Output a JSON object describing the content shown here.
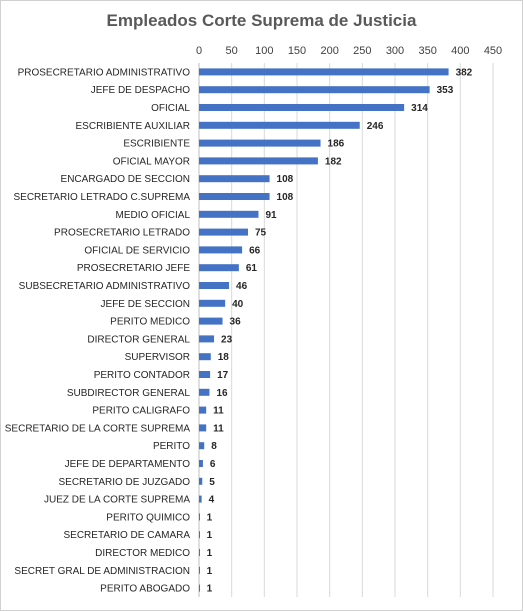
{
  "chart_data": {
    "type": "bar",
    "orientation": "horizontal",
    "title": "Empleados Corte Suprema de Justicia",
    "xlabel": "",
    "ylabel": "",
    "xlim": [
      0,
      450
    ],
    "x_ticks": [
      0,
      50,
      100,
      150,
      200,
      250,
      300,
      350,
      400,
      450
    ],
    "x_axis_position": "top",
    "grid": "vertical",
    "legend": "none",
    "bar_color": "#4472c4",
    "categories": [
      "PROSECRETARIO ADMINISTRATIVO",
      "JEFE DE DESPACHO",
      "OFICIAL",
      "ESCRIBIENTE AUXILIAR",
      "ESCRIBIENTE",
      "OFICIAL MAYOR",
      "ENCARGADO DE SECCION",
      "SECRETARIO LETRADO C.SUPREMA",
      "MEDIO OFICIAL",
      "PROSECRETARIO LETRADO",
      "OFICIAL DE SERVICIO",
      "PROSECRETARIO JEFE",
      "SUBSECRETARIO ADMINISTRATIVO",
      "JEFE DE SECCION",
      "PERITO MEDICO",
      "DIRECTOR GENERAL",
      "SUPERVISOR",
      "PERITO CONTADOR",
      "SUBDIRECTOR GENERAL",
      "PERITO CALIGRAFO",
      "SECRETARIO DE LA CORTE SUPREMA",
      "PERITO",
      "JEFE DE DEPARTAMENTO",
      "SECRETARIO DE JUZGADO",
      "JUEZ DE LA CORTE SUPREMA",
      "PERITO QUIMICO",
      "SECRETARIO DE CAMARA",
      "DIRECTOR MEDICO",
      "SECRET GRAL DE ADMINISTRACION",
      "PERITO ABOGADO"
    ],
    "values": [
      382,
      353,
      314,
      246,
      186,
      182,
      108,
      108,
      91,
      75,
      66,
      61,
      46,
      40,
      36,
      23,
      18,
      17,
      16,
      11,
      11,
      8,
      6,
      5,
      4,
      1,
      1,
      1,
      1,
      1
    ]
  }
}
